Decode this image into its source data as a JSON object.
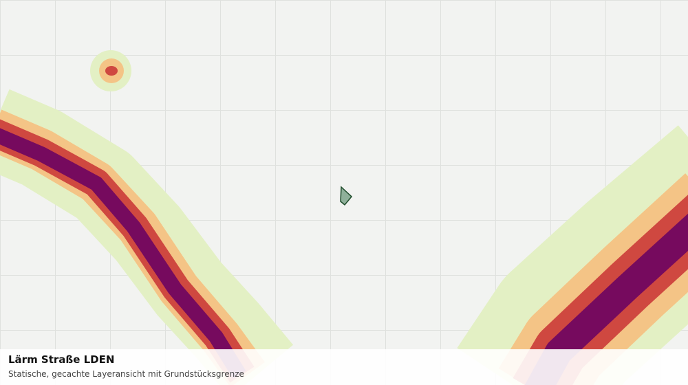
{
  "layer": {
    "title": "Lärm Straße LDEN",
    "subtitle": "Statische, gecachte Layeransicht mit Grundstücksgrenze"
  }
}
